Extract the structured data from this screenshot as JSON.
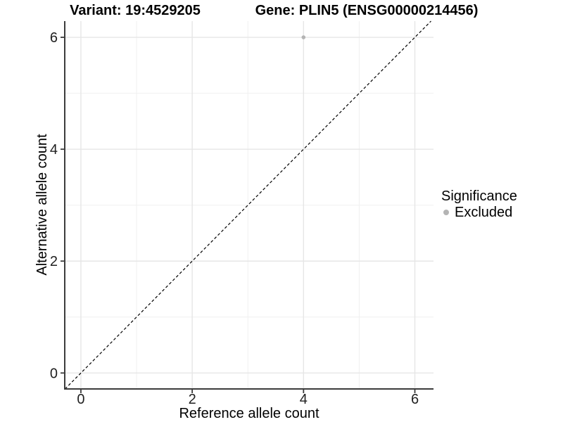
{
  "chart_data": {
    "type": "scatter",
    "title_left": "Variant: 19:4529205",
    "title_right": "Gene: PLIN5 (ENSG00000214456)",
    "xlabel": "Reference allele count",
    "ylabel": "Alternative allele count",
    "xlim": [
      -0.29,
      6.335
    ],
    "ylim": [
      -0.285,
      6.29
    ],
    "xticks": [
      0,
      2,
      4,
      6
    ],
    "yticks": [
      0,
      2,
      4,
      6
    ],
    "minor_xticks": [
      1,
      3,
      5
    ],
    "minor_yticks": [
      1,
      3,
      5
    ],
    "grid": {
      "show": true,
      "major_color": "#e6e6e6",
      "minor_color": "#f0f0f0"
    },
    "identity_line": {
      "slope": 1,
      "intercept": 0,
      "style": "dashed",
      "color": "#000000"
    },
    "series": [
      {
        "name": "Excluded",
        "color": "#b4b4b4",
        "points": [
          {
            "x": 4,
            "y": 6
          }
        ]
      }
    ],
    "legend": {
      "title": "Significance",
      "position": "right",
      "items": [
        {
          "label": "Excluded",
          "color": "#b4b4b4"
        }
      ]
    },
    "axis": {
      "line_color": "#3c3c3c",
      "tick_color": "#3c3c3c",
      "tick_label_color": "#1f1f1f",
      "text_color": "#000000"
    }
  }
}
